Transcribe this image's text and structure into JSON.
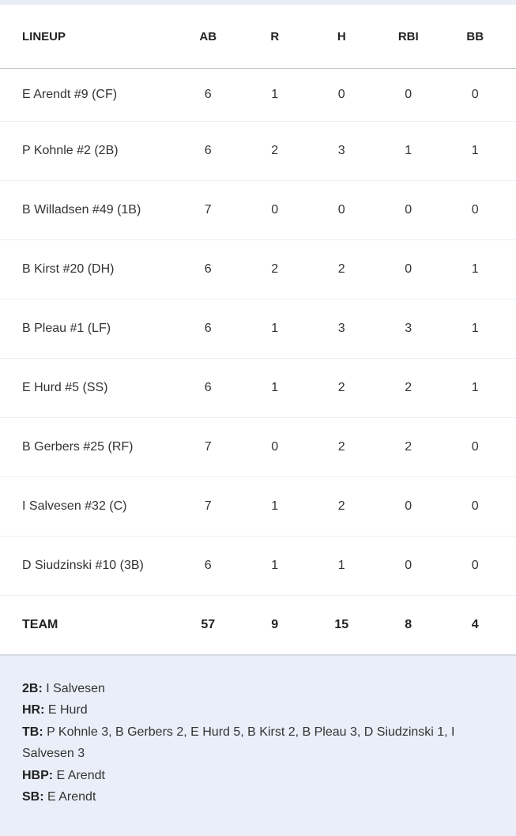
{
  "columns": [
    "LINEUP",
    "AB",
    "R",
    "H",
    "RBI",
    "BB"
  ],
  "players": [
    {
      "name": "E Arendt #9 (CF)",
      "stats": [
        "6",
        "1",
        "0",
        "0",
        "0"
      ]
    },
    {
      "name": "P Kohnle #2 (2B)",
      "stats": [
        "6",
        "2",
        "3",
        "1",
        "1"
      ]
    },
    {
      "name": "B Willadsen #49 (1B)",
      "stats": [
        "7",
        "0",
        "0",
        "0",
        "0"
      ]
    },
    {
      "name": "B Kirst #20 (DH)",
      "stats": [
        "6",
        "2",
        "2",
        "0",
        "1"
      ]
    },
    {
      "name": "B Pleau #1 (LF)",
      "stats": [
        "6",
        "1",
        "3",
        "3",
        "1"
      ]
    },
    {
      "name": "E Hurd #5 (SS)",
      "stats": [
        "6",
        "1",
        "2",
        "2",
        "1"
      ]
    },
    {
      "name": "B Gerbers #25 (RF)",
      "stats": [
        "7",
        "0",
        "2",
        "2",
        "0"
      ]
    },
    {
      "name": "I Salvesen #32 (C)",
      "stats": [
        "7",
        "1",
        "2",
        "0",
        "0"
      ]
    },
    {
      "name": "D Siudzinski #10 (3B)",
      "stats": [
        "6",
        "1",
        "1",
        "0",
        "0"
      ]
    }
  ],
  "team": {
    "name": "TEAM",
    "stats": [
      "57",
      "9",
      "15",
      "8",
      "4"
    ]
  },
  "notes": [
    {
      "label": "2B:",
      "text": " I Salvesen"
    },
    {
      "label": "HR:",
      "text": " E Hurd"
    },
    {
      "label": "TB:",
      "text": " P Kohnle 3, B Gerbers 2, E Hurd 5, B Kirst 2, B Pleau 3, D Siudzinski 1, I Salvesen 3"
    },
    {
      "label": "HBP:",
      "text": " E Arendt"
    },
    {
      "label": "SB:",
      "text": " E Arendt"
    }
  ]
}
